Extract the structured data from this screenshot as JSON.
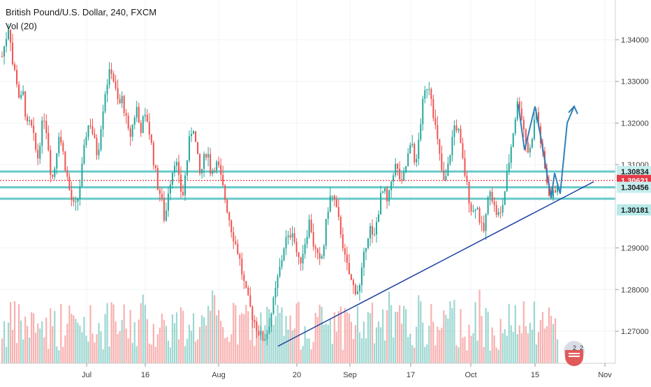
{
  "header": {
    "title": "British Pound/U.S. Dollar, 240, FXCM",
    "indicator": "Vol (20)"
  },
  "chart_data": {
    "type": "candlestick",
    "symbol": "British Pound/U.S. Dollar",
    "interval": "240",
    "source": "FXCM",
    "y_range": [
      1.2625,
      1.3475
    ],
    "y_ticks": [
      "1.34000",
      "1.33000",
      "1.32000",
      "1.31000",
      "1.29000",
      "1.28000",
      "1.27000"
    ],
    "x_ticks": [
      "Jul",
      "16",
      "Aug",
      "20",
      "Sep",
      "17",
      "Oct",
      "15",
      "Nov"
    ],
    "price_path": [
      [
        1.336,
        1.34,
        1.344,
        1.334,
        1.331,
        1.325,
        1.327,
        1.319,
        1.32,
        1.316,
        1.311,
        1.318,
        1.322,
        1.315,
        1.306,
        1.31,
        1.318,
        1.314,
        1.309,
        1.304,
        1.3
      ],
      [
        1.3,
        1.305,
        1.312,
        1.319,
        1.32,
        1.316,
        1.312,
        1.32,
        1.327,
        1.331,
        1.333,
        1.328,
        1.324,
        1.326,
        1.321,
        1.316,
        1.32,
        1.324,
        1.318,
        1.321
      ],
      [
        1.321,
        1.316,
        1.31,
        1.305,
        1.302,
        1.296,
        1.304,
        1.308,
        1.312,
        1.306,
        1.302,
        1.309,
        1.316,
        1.32,
        1.313,
        1.307,
        1.311,
        1.314,
        1.308,
        1.31
      ],
      [
        1.31,
        1.306,
        1.302,
        1.298,
        1.294,
        1.291,
        1.288,
        1.283,
        1.279,
        1.276,
        1.273,
        1.271,
        1.269,
        1.268,
        1.27,
        1.274,
        1.278,
        1.283,
        1.287,
        1.292
      ],
      [
        1.292,
        1.295,
        1.29,
        1.286,
        1.289,
        1.293,
        1.297,
        1.291,
        1.288,
        1.286,
        1.291,
        1.299,
        1.303,
        1.301,
        1.297,
        1.293,
        1.287,
        1.284,
        1.281,
        1.28
      ],
      [
        1.28,
        1.286,
        1.292,
        1.295,
        1.291,
        1.297,
        1.302,
        1.304,
        1.3,
        1.306,
        1.31,
        1.308,
        1.305,
        1.309,
        1.313,
        1.315,
        1.309,
        1.318,
        1.325,
        1.329
      ],
      [
        1.329,
        1.322,
        1.316,
        1.31,
        1.305,
        1.309,
        1.315,
        1.32,
        1.318,
        1.312,
        1.307,
        1.302,
        1.298,
        1.301,
        1.297,
        1.293,
        1.299,
        1.305,
        1.3,
        1.298
      ],
      [
        1.298,
        1.303,
        1.309,
        1.315,
        1.321,
        1.326,
        1.321,
        1.316,
        1.312,
        1.318,
        1.323,
        1.317,
        1.311,
        1.306,
        1.302,
        1.303,
        1.306
      ]
    ],
    "horizontal_levels": [
      1.30834,
      1.30621,
      1.30456,
      1.30181
    ],
    "current_price": 1.30621,
    "trendline": {
      "start": [
        "Aug 20",
        1.2664
      ],
      "end": [
        "Oct 23",
        1.3059
      ]
    },
    "projection_path": [
      1.3245,
      1.3135,
      1.324,
      1.315,
      1.302,
      1.308,
      1.303,
      1.32,
      1.324
    ],
    "colors": {
      "up": "#26a69a",
      "down": "#ef5350",
      "level_line": "#66c9c9",
      "current_price": "#e63946",
      "trendline": "#1a3fa0",
      "projection": "#2f80b8"
    }
  },
  "price_tags": [
    {
      "label": "1.30834"
    },
    {
      "label": "1.30621"
    },
    {
      "label": "1.30456"
    },
    {
      "label": "1.30181"
    }
  ]
}
